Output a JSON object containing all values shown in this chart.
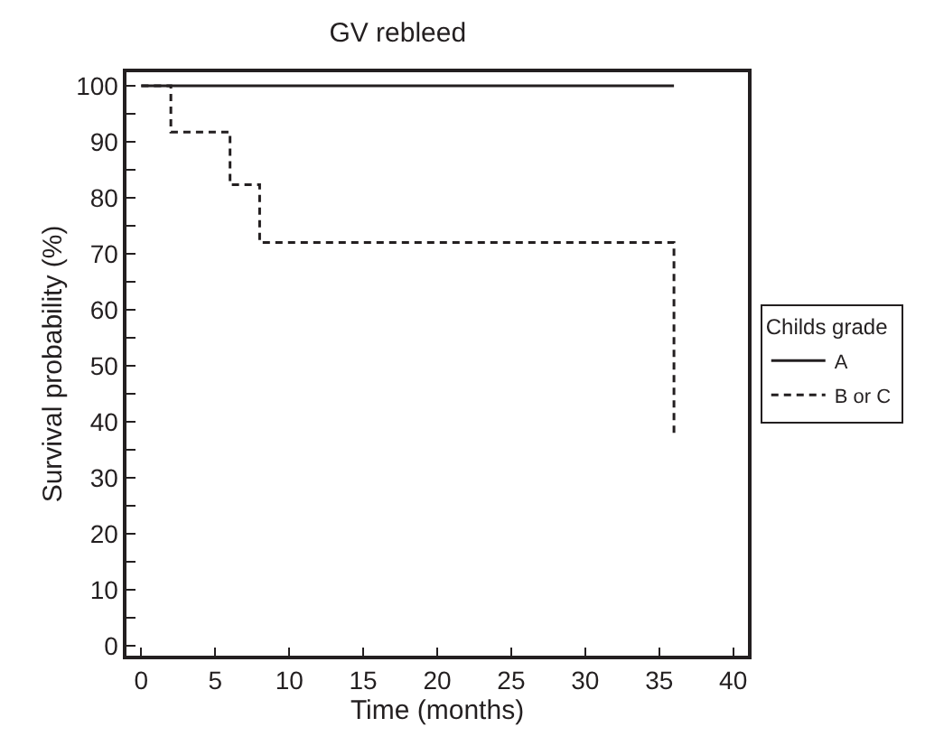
{
  "chart_data": {
    "type": "step",
    "title": "GV rebleed",
    "xlabel": "Time (months)",
    "ylabel": "Survival probability (%)",
    "legend_title": "Childs grade",
    "legend": "right",
    "marker": "none",
    "xlim": [
      -1,
      41
    ],
    "ylim": [
      -1.8,
      102.4
    ],
    "xticks": [
      0,
      5,
      10,
      15,
      20,
      25,
      30,
      35,
      40
    ],
    "yticks": [
      0,
      {
        "value": 5,
        "label": null
      },
      10,
      {
        "value": 15,
        "label": null
      },
      20,
      {
        "value": 25,
        "label": null
      },
      30,
      {
        "value": 35,
        "label": null
      },
      40,
      {
        "value": 45,
        "label": null
      },
      50,
      {
        "value": 55,
        "label": null
      },
      60,
      {
        "value": 65,
        "label": null
      },
      70,
      {
        "value": 75,
        "label": null
      },
      80,
      {
        "value": 85,
        "label": null
      },
      90,
      {
        "value": 95,
        "label": null
      },
      100
    ],
    "series": [
      {
        "name": "A",
        "color": "#231f20",
        "line_style": "solid",
        "x": [
          0,
          36
        ],
        "values": [
          100,
          100
        ]
      },
      {
        "name": "B or C",
        "color": "#231f20",
        "line_style": "dashed",
        "x": [
          0,
          2,
          6,
          8,
          36,
          36
        ],
        "values": [
          100,
          91.7,
          82.3,
          72,
          72,
          37.3
        ]
      }
    ]
  }
}
